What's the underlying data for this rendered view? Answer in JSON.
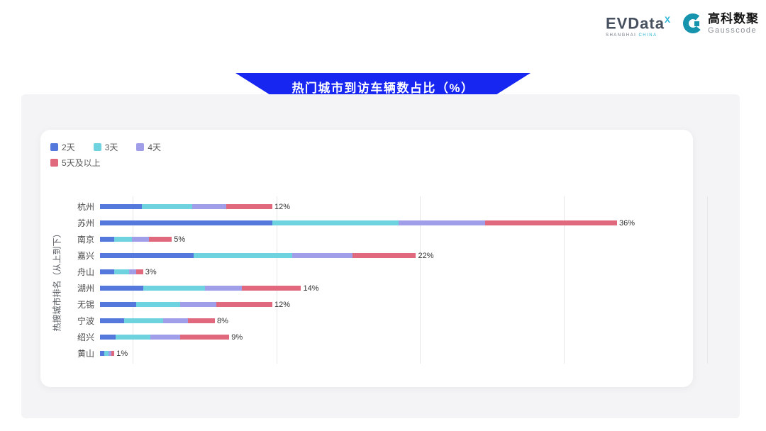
{
  "header": {
    "evdata_logo": {
      "text": "EVData",
      "sup": "X",
      "subtext_left": "SHANGHAI",
      "subtext_right": "CHINA"
    },
    "gausscode_logo": {
      "cn": "高科数聚",
      "en": "Gausscode",
      "icon_color": "#1694ae"
    }
  },
  "title_banner": {
    "text": "热门城市到访车辆数占比（%）",
    "bg_color": "#1726f0"
  },
  "chart_data": {
    "type": "bar",
    "orientation": "horizontal",
    "stacked": true,
    "title": "热门城市到访车辆数占比（%）",
    "xlabel": "",
    "ylabel": "热搜城市排名（从上到下）",
    "xlim": [
      0,
      40
    ],
    "grid": true,
    "gridline_positions": [
      0,
      10,
      20,
      30,
      40
    ],
    "legend_position": "top-left",
    "categories": [
      "杭州",
      "苏州",
      "南京",
      "嘉兴",
      "舟山",
      "湖州",
      "无锡",
      "宁波",
      "绍兴",
      "黄山"
    ],
    "series": [
      {
        "name": "2天",
        "color": "#5478dc",
        "values": [
          2.9,
          12.0,
          1.0,
          6.5,
          1.0,
          3.0,
          2.5,
          1.7,
          1.1,
          0.3
        ]
      },
      {
        "name": "3天",
        "color": "#6ed3df",
        "values": [
          3.5,
          8.8,
          1.2,
          6.9,
          1.0,
          4.3,
          3.1,
          2.7,
          2.4,
          0.3
        ]
      },
      {
        "name": "4天",
        "color": "#a09ee8",
        "values": [
          2.4,
          6.0,
          1.2,
          4.2,
          0.5,
          2.6,
          2.5,
          1.7,
          2.1,
          0.2
        ]
      },
      {
        "name": "5天及以上",
        "color": "#e0697d",
        "values": [
          3.2,
          9.2,
          1.6,
          4.4,
          0.5,
          4.1,
          3.9,
          1.9,
          3.4,
          0.2
        ]
      }
    ],
    "totals_labels": [
      "12%",
      "36%",
      "5%",
      "22%",
      "3%",
      "14%",
      "12%",
      "8%",
      "9%",
      "1%"
    ]
  }
}
